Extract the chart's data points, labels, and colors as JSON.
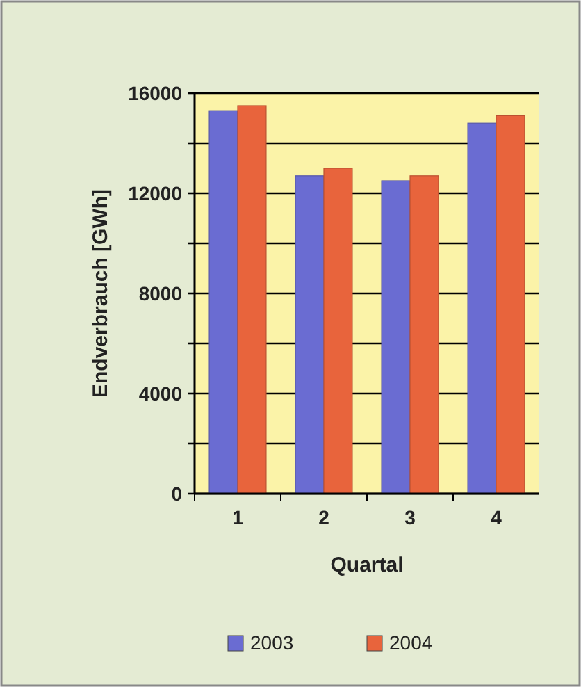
{
  "chart_data": {
    "type": "bar",
    "xlabel": "Quartal",
    "ylabel": "Endverbrauch [GWh]",
    "categories": [
      "1",
      "2",
      "3",
      "4"
    ],
    "series": [
      {
        "name": "2003",
        "color": "#6a6cd2",
        "values": [
          15300,
          12700,
          12500,
          14800
        ]
      },
      {
        "name": "2004",
        "color": "#e8643c",
        "values": [
          15500,
          13000,
          12700,
          15100
        ]
      }
    ],
    "ylim": [
      0,
      16000
    ],
    "yticks": [
      0,
      {
        "value": 2000,
        "label": null
      },
      4000,
      {
        "value": 6000,
        "label": null
      },
      8000,
      {
        "value": 10000,
        "label": null
      },
      12000,
      {
        "value": 14000,
        "label": null
      },
      16000
    ],
    "grid": "y",
    "legend": "bottom"
  }
}
